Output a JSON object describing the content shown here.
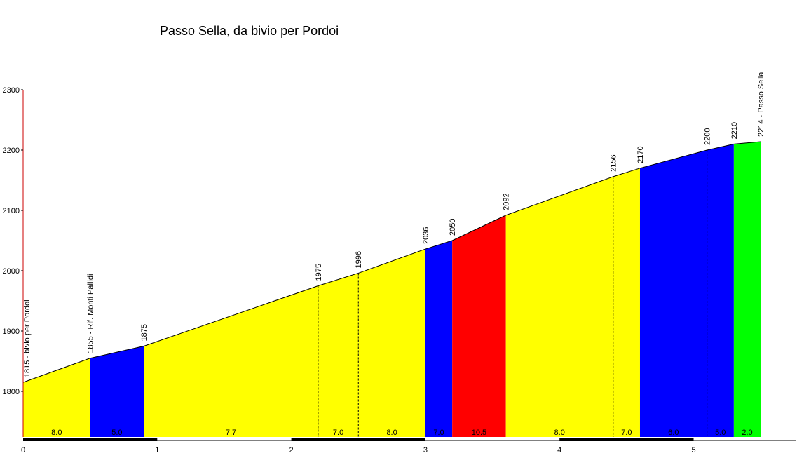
{
  "chart_data": {
    "type": "area",
    "title": "Passo Sella, da bivio per Pordoi",
    "xlabel": "",
    "ylabel": "",
    "xlim": [
      0,
      5.75
    ],
    "ylim": [
      1725,
      2300
    ],
    "y_ticks": [
      1800,
      1900,
      2000,
      2100,
      2200,
      2300
    ],
    "x_ticks": [
      0,
      1,
      2,
      3,
      4,
      5
    ],
    "grid": false,
    "legend": "none",
    "points": [
      {
        "x": 0.0,
        "y": 1815,
        "label": "1815 - bivio per Pordoi"
      },
      {
        "x": 0.5,
        "y": 1855,
        "label": "1855 - Rif. Monti Pallidi"
      },
      {
        "x": 0.9,
        "y": 1875,
        "label": "1875"
      },
      {
        "x": 2.2,
        "y": 1975,
        "label": "1975"
      },
      {
        "x": 2.5,
        "y": 1996,
        "label": "1996"
      },
      {
        "x": 3.0,
        "y": 2036,
        "label": "2036"
      },
      {
        "x": 3.2,
        "y": 2050,
        "label": "2050"
      },
      {
        "x": 3.6,
        "y": 2092,
        "label": "2092"
      },
      {
        "x": 4.4,
        "y": 2156,
        "label": "2156"
      },
      {
        "x": 4.6,
        "y": 2170,
        "label": "2170"
      },
      {
        "x": 5.1,
        "y": 2200,
        "label": "2200"
      },
      {
        "x": 5.3,
        "y": 2210,
        "label": "2210"
      },
      {
        "x": 5.5,
        "y": 2214,
        "label": "2214 - Passo Sella"
      }
    ],
    "segments": [
      {
        "from": 0.0,
        "to": 0.5,
        "gradient": "8.0",
        "color": "#ffff00"
      },
      {
        "from": 0.5,
        "to": 0.9,
        "gradient": "5.0",
        "color": "#0000ff"
      },
      {
        "from": 0.9,
        "to": 2.2,
        "gradient": "7.7",
        "color": "#ffff00"
      },
      {
        "from": 2.2,
        "to": 2.5,
        "gradient": "7.0",
        "color": "#ffff00"
      },
      {
        "from": 2.5,
        "to": 3.0,
        "gradient": "8.0",
        "color": "#ffff00"
      },
      {
        "from": 3.0,
        "to": 3.2,
        "gradient": "7.0",
        "color": "#0000ff"
      },
      {
        "from": 3.2,
        "to": 3.6,
        "gradient": "10.5",
        "color": "#ff0000"
      },
      {
        "from": 3.6,
        "to": 4.4,
        "gradient": "8.0",
        "color": "#ffff00"
      },
      {
        "from": 4.4,
        "to": 4.6,
        "gradient": "7.0",
        "color": "#ffff00"
      },
      {
        "from": 4.6,
        "to": 5.1,
        "gradient": "6.0",
        "color": "#0000ff"
      },
      {
        "from": 5.1,
        "to": 5.3,
        "gradient": "5.0",
        "color": "#0000ff"
      },
      {
        "from": 5.3,
        "to": 5.5,
        "gradient": "2.0",
        "color": "#00ff00"
      }
    ],
    "dashed_dividers_at": [
      2.2,
      2.5,
      4.4,
      5.1
    ]
  }
}
